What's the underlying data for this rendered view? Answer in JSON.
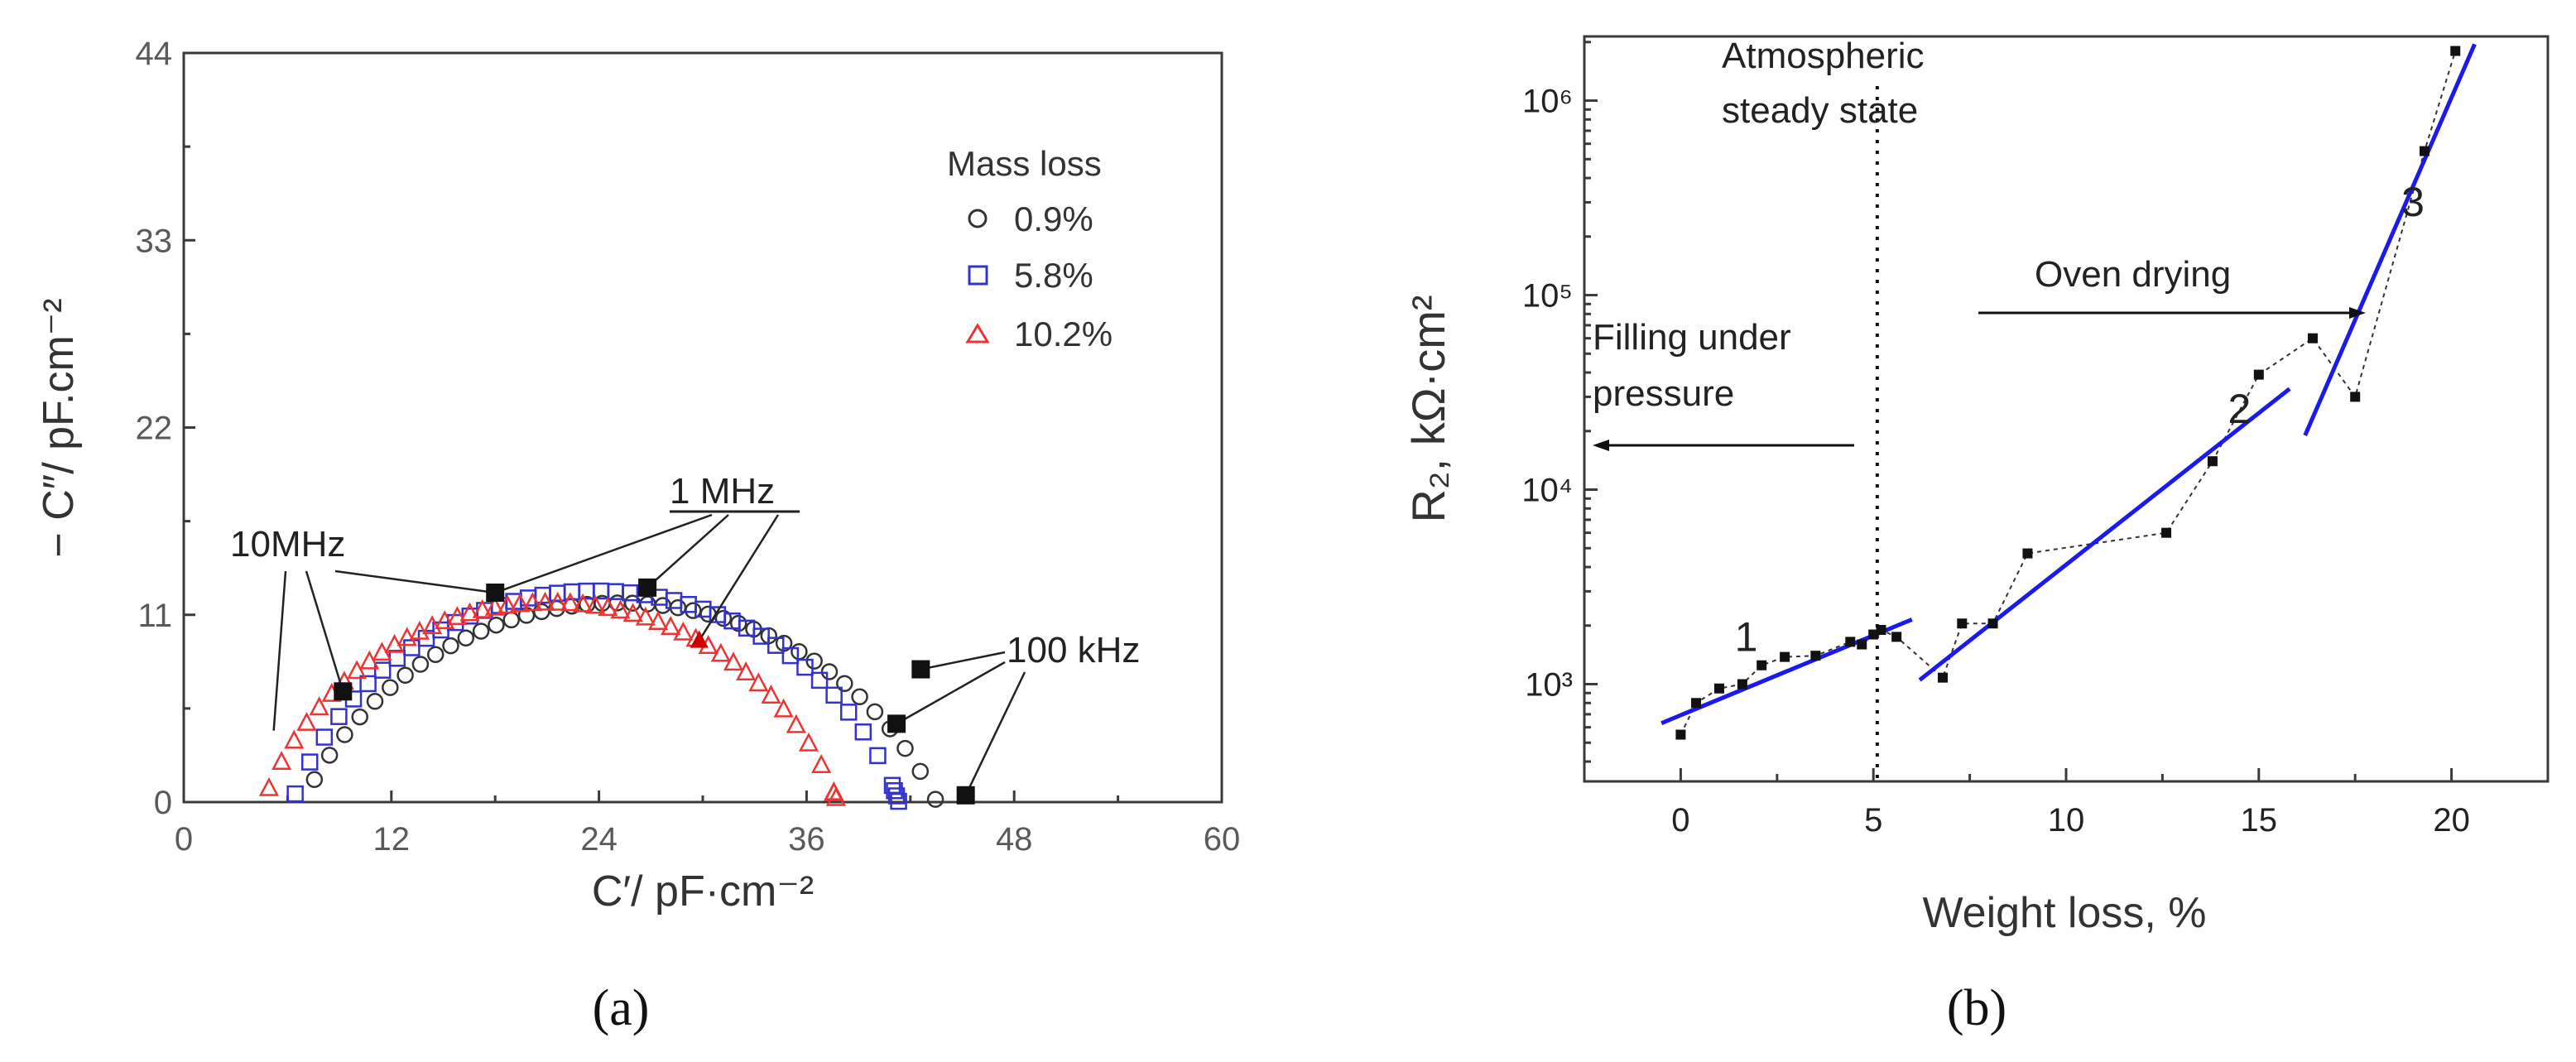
{
  "panels": {
    "a": "(a)",
    "b": "(b)"
  },
  "chart_data": [
    {
      "type": "scatter",
      "xlabel": "C′/ pF·cm⁻²",
      "ylabel": "− C″/ pF.cm⁻²",
      "xlim": [
        0,
        60
      ],
      "ylim": [
        0,
        44
      ],
      "xticks": [
        "0",
        "12",
        "24",
        "36",
        "48",
        "60"
      ],
      "yticks": [
        "0",
        "11",
        "22",
        "33",
        "44"
      ],
      "legend": {
        "title": "Mass loss",
        "position": "top-right"
      },
      "series": [
        {
          "name": "0.9%",
          "marker": "circle",
          "color": "#333333",
          "center": [
            25.2,
            -8.5
          ],
          "radius": 20.2,
          "x_start": 5.8,
          "x_end": 45.2
        },
        {
          "name": "5.8%",
          "marker": "square",
          "color": "#3333cc",
          "center": [
            23.8,
            -6.2
          ],
          "radius": 18.6,
          "x_start": 5.6,
          "x_end": 41.8
        },
        {
          "name": "10.2%",
          "marker": "triangle",
          "color": "#ee3333",
          "center": [
            21.2,
            -5.9
          ],
          "radius": 17.6,
          "x_start": 4.2,
          "x_end": 38.3
        }
      ],
      "freq_markers": [
        {
          "x": 18.0,
          "y": 12.3,
          "color": "#111"
        },
        {
          "x": 26.8,
          "y": 12.6,
          "color": "#111"
        },
        {
          "x": 9.2,
          "y": 6.5,
          "color": "#111"
        },
        {
          "x": 42.6,
          "y": 7.8,
          "color": "#111"
        },
        {
          "x": 41.2,
          "y": 4.6,
          "color": "#111"
        },
        {
          "x": 29.8,
          "y": 9.5,
          "color": "#111"
        },
        {
          "x": 45.2,
          "y": 0.4,
          "color": "#111"
        }
      ],
      "annotations": [
        {
          "text": "1 MHz",
          "x": 30.8,
          "y": 17.7
        },
        {
          "text": "10MHz",
          "x": 5.8,
          "y": 14.0
        },
        {
          "text": "100 kHz",
          "x": 50.5,
          "y": 8.7
        }
      ]
    },
    {
      "type": "scatter",
      "xlabel": "Weight loss, %",
      "ylabel": "R₂, kΩ·cm²",
      "xlim": [
        -2.5,
        22.5
      ],
      "ylim_log10": [
        2.5,
        6.33
      ],
      "yscale": "log",
      "xticks": [
        "0",
        "5",
        "10",
        "15",
        "20"
      ],
      "yticks": [
        "10³",
        "10⁴",
        "10⁵",
        "10⁶"
      ],
      "points": [
        [
          0,
          550
        ],
        [
          0.4,
          800
        ],
        [
          1.0,
          950
        ],
        [
          1.6,
          1000
        ],
        [
          2.1,
          1250
        ],
        [
          2.7,
          1380
        ],
        [
          3.5,
          1400
        ],
        [
          4.4,
          1650
        ],
        [
          4.7,
          1600
        ],
        [
          5.0,
          1800
        ],
        [
          5.2,
          1900
        ],
        [
          5.6,
          1750
        ],
        [
          6.8,
          1080
        ],
        [
          7.3,
          2050
        ],
        [
          8.1,
          2050
        ],
        [
          9.0,
          4700
        ],
        [
          12.6,
          6000
        ],
        [
          13.8,
          14000
        ],
        [
          15.0,
          39000
        ],
        [
          16.4,
          60000
        ],
        [
          17.5,
          30000
        ],
        [
          19.3,
          550000
        ],
        [
          20.1,
          1800000
        ]
      ],
      "fit_lines": [
        {
          "label": "1",
          "x": [
            -0.5,
            6.0
          ],
          "y": [
            630,
            2150
          ],
          "label_pos": [
            1.4,
            1480
          ]
        },
        {
          "label": "2",
          "x": [
            6.2,
            15.8
          ],
          "y": [
            1050,
            33000
          ],
          "label_pos": [
            14.2,
            22000
          ]
        },
        {
          "label": "3",
          "x": [
            16.2,
            20.6
          ],
          "y": [
            19000,
            1950000
          ],
          "label_pos": [
            18.7,
            255000
          ]
        }
      ],
      "vline_x": 5.1,
      "annotations": {
        "steady_line1": "Atmospheric",
        "steady_line2": "steady state",
        "filling_line1": "Filling under",
        "filling_line2": "pressure",
        "oven": "Oven drying"
      },
      "colors": {
        "fit": "#1a1aee",
        "points": "#111111"
      }
    }
  ]
}
